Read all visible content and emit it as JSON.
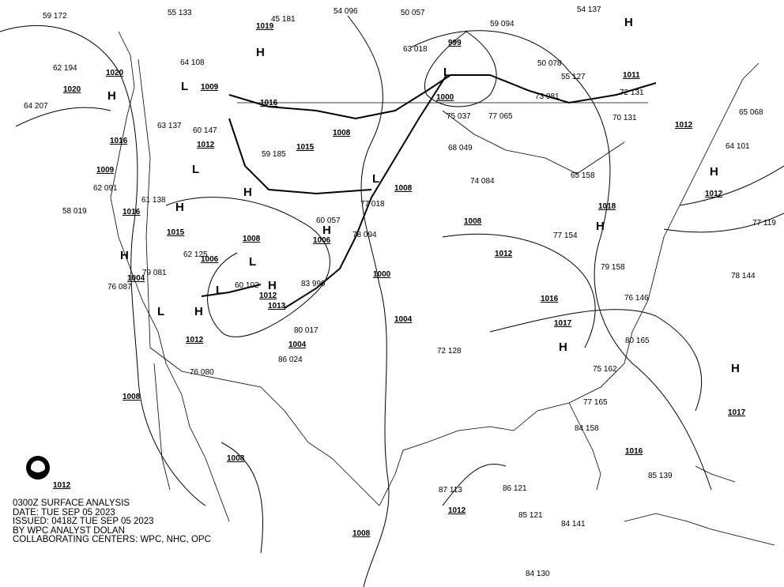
{
  "title_block": {
    "line1": "0300Z SURFACE ANALYSIS",
    "line2": "DATE: TUE SEP 05 2023",
    "line3": "ISSUED: 0418Z TUE SEP 05 2023",
    "line4": "BY WPC ANALYST DOLAN",
    "line5": "COLLABORATING CENTERS: WPC, NHC, OPC"
  },
  "logo": {
    "name": "noaa-logo",
    "text": "NOAA"
  },
  "high_symbol": "H",
  "low_symbol": "L",
  "isobar_labels": [
    "1019",
    "1020",
    "1020",
    "1009",
    "1016",
    "1012",
    "1016",
    "1009",
    "1016",
    "1015",
    "1008",
    "1006",
    "1006",
    "1008",
    "1015",
    "1008",
    "1000",
    "1000",
    "1004",
    "1012",
    "1013",
    "1012",
    "1004",
    "1004",
    "1008",
    "1012",
    "1016",
    "1017",
    "1018",
    "1011",
    "1012",
    "1012",
    "1017",
    "1016",
    "1008",
    "1008",
    "1012",
    "1008",
    "1012",
    "999"
  ],
  "stations": [
    "59 172",
    "55 133",
    "45 181",
    "54 096",
    "50 057",
    "54 137",
    "62 194",
    "64 207",
    "64 108",
    "63 018",
    "59 094",
    "50 078",
    "55 127",
    "73 081",
    "72 131",
    "70 131",
    "63 137",
    "60 147",
    "59 185",
    "75 037",
    "77 065",
    "68 049",
    "74 084",
    "65 158",
    "61 138",
    "62 091",
    "77 018",
    "60 057",
    "78 094",
    "77 154",
    "79 158",
    "78 144",
    "77 119",
    "79 081",
    "76 087",
    "60 102",
    "83 999",
    "80 017",
    "86 024",
    "72 128",
    "76 146",
    "80 165",
    "75 162",
    "76 080",
    "84 141",
    "84 130",
    "85 121",
    "86 121",
    "87 113",
    "85 139",
    "84 158",
    "77 165",
    "64 101",
    "65 068",
    "58 019",
    "62 125"
  ],
  "colors": {
    "background": "#ffffff",
    "lines": "#000000"
  }
}
